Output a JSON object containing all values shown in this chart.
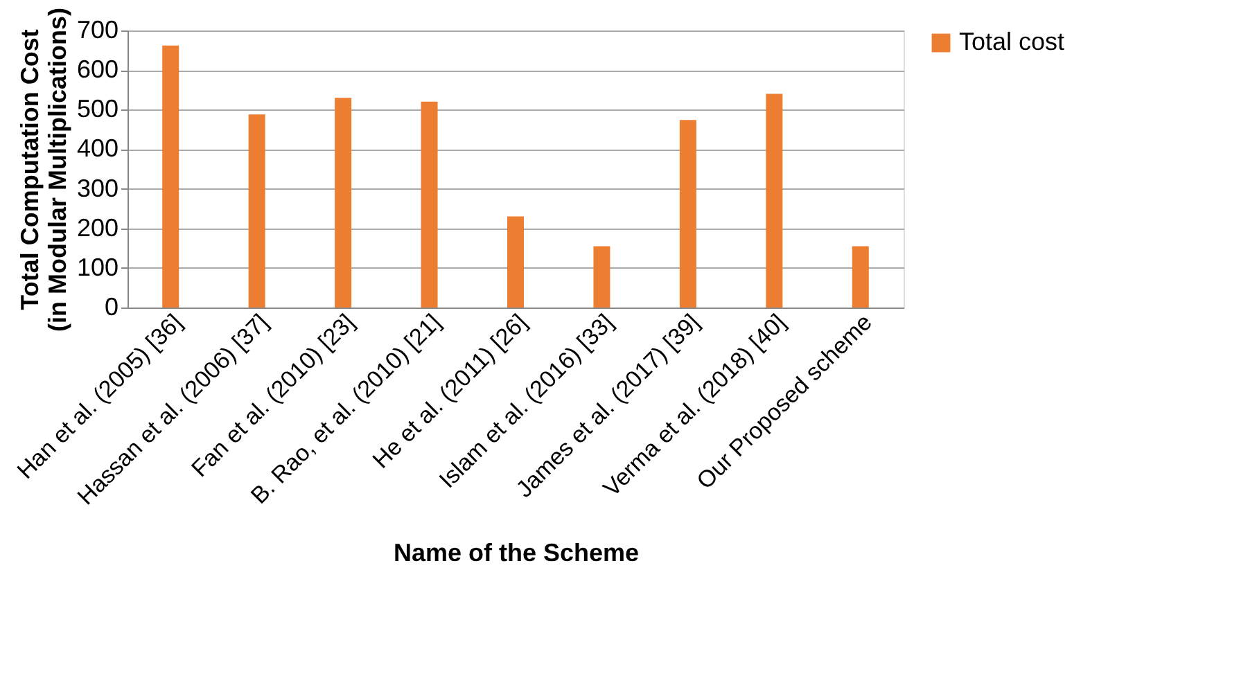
{
  "chart_data": {
    "type": "bar",
    "xlabel": "Name of the Scheme",
    "ylabel": "Total Computation Cost\n(in Modular Multiplications)",
    "categories": [
      "Han et al.  (2005) [36]",
      "Hassan et al.  (2006) [37]",
      "Fan et al.  (2010) [23]",
      "B. Rao, et al. (2010) [21]",
      "He et al.  (2011) [26]",
      "Islam et al. (2016) [33]",
      "James et al. (2017) [39]",
      "Verma et al. (2018) [40]",
      "Our Proposed scheme"
    ],
    "series": [
      {
        "name": "Total cost",
        "color": "#ed7d31",
        "values": [
          662,
          488,
          530,
          520,
          230,
          155,
          474,
          540,
          155
        ]
      }
    ],
    "ylim": [
      0,
      700
    ],
    "yticks": [
      0,
      100,
      200,
      300,
      400,
      500,
      600,
      700
    ],
    "grid": "y",
    "legend": "right"
  }
}
